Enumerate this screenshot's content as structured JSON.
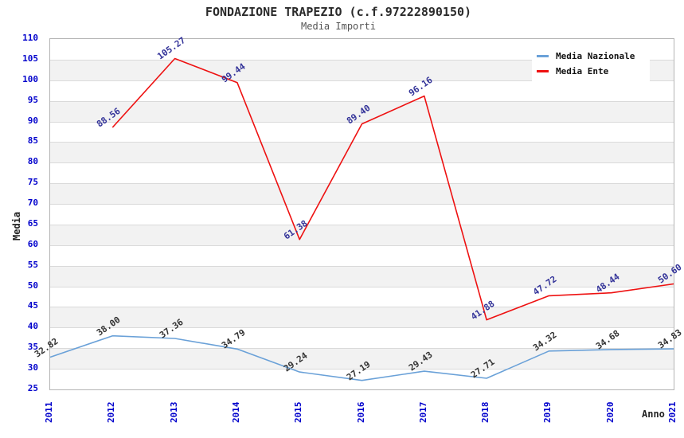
{
  "chart_data": {
    "type": "line",
    "title": "FONDAZIONE TRAPEZIO (c.f.97222890150)",
    "subtitle": "Media Importi",
    "xlabel": "Anno",
    "ylabel": "Media",
    "x": [
      2011,
      2012,
      2013,
      2014,
      2015,
      2016,
      2017,
      2018,
      2019,
      2020,
      2021
    ],
    "xtick_labels": [
      "2011",
      "2012",
      "2013",
      "2014",
      "2015",
      "2016",
      "2017",
      "2018",
      "2019",
      "2020",
      "2021"
    ],
    "ylim": [
      25,
      110
    ],
    "ytick_step": 5,
    "ytick_labels": [
      "25",
      "30",
      "35",
      "40",
      "45",
      "50",
      "55",
      "60",
      "65",
      "70",
      "75",
      "80",
      "85",
      "90",
      "95",
      "100",
      "105",
      "110"
    ],
    "grid": "horizontal alternating bands",
    "legend_position": "top-right",
    "series": [
      {
        "name": "Media Nazionale",
        "color": "#6aa1d8",
        "label_color": "#333333",
        "values": [
          32.82,
          38.0,
          37.36,
          34.79,
          29.24,
          27.19,
          29.43,
          27.71,
          34.32,
          34.68,
          34.83
        ]
      },
      {
        "name": "Media Ente",
        "color": "#ee1111",
        "label_color": "#333399",
        "values": [
          null,
          88.56,
          105.27,
          99.44,
          61.38,
          89.4,
          96.16,
          41.88,
          47.72,
          48.44,
          50.6
        ]
      }
    ],
    "style": {
      "tick_color": "#0000cc",
      "band_color": "#f2f2f2",
      "gridline_color": "#dadada",
      "plot_border_color": "#b4b4b4",
      "title_color": "#2b2b2b",
      "subtitle_color": "#555555"
    }
  }
}
